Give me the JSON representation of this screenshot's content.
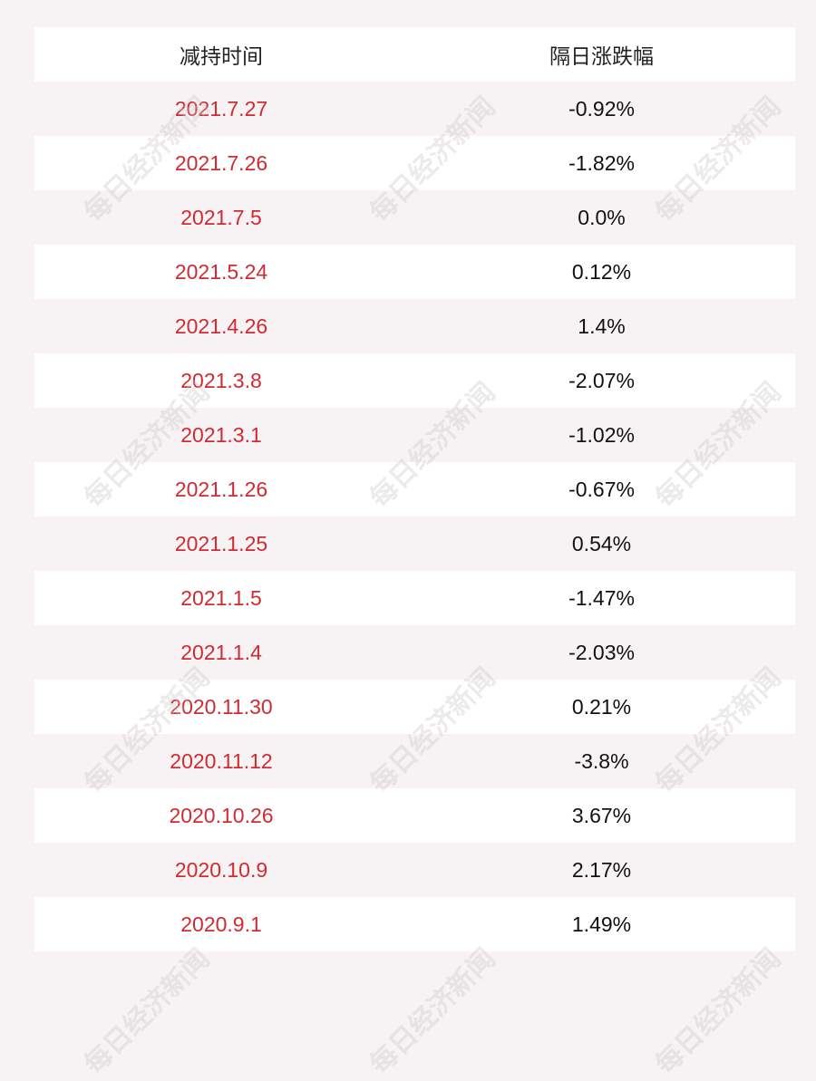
{
  "table": {
    "header": [
      "减持时间",
      "隔日涨跌幅"
    ],
    "rows": [
      [
        "2021.7.27",
        "-0.92%"
      ],
      [
        "2021.7.26",
        "-1.82%"
      ],
      [
        "2021.7.5",
        "0.0%"
      ],
      [
        "2021.5.24",
        "0.12%"
      ],
      [
        "2021.4.26",
        "1.4%"
      ],
      [
        "2021.3.8",
        "-2.07%"
      ],
      [
        "2021.3.1",
        "-1.02%"
      ],
      [
        "2021.1.26",
        "-0.67%"
      ],
      [
        "2021.1.25",
        "0.54%"
      ],
      [
        "2021.1.5",
        "-1.47%"
      ],
      [
        "2021.1.4",
        "-2.03%"
      ],
      [
        "2020.11.30",
        "0.21%"
      ],
      [
        "2020.11.12",
        "-3.8%"
      ],
      [
        "2020.10.26",
        "3.67%"
      ],
      [
        "2020.10.9",
        "2.17%"
      ],
      [
        "2020.9.1",
        "1.49%"
      ]
    ]
  },
  "watermark": "每日经济新闻"
}
